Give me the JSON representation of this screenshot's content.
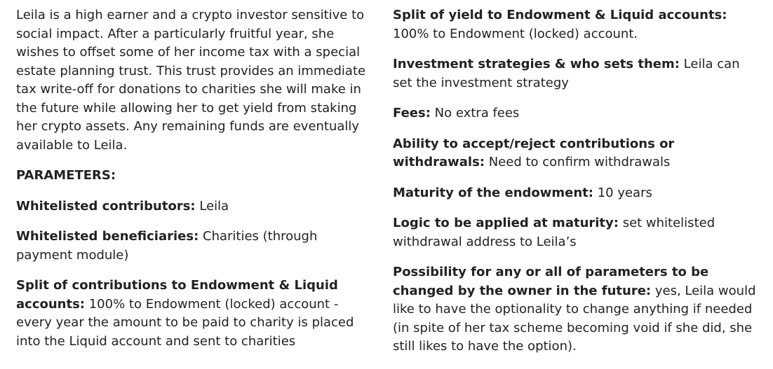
{
  "left": {
    "intro": "Leila is a high earner and a crypto investor sensitive to social impact. After a particularly fruitful year, she wishes to offset some of her income tax with a special estate planning trust. This trust provides an immediate tax write-off for donations to charities she will make in the future while allowing her to get yield from staking her crypto assets. Any remaining funds are eventually available to Leila.",
    "heading": "PARAMETERS:",
    "params": [
      {
        "label": "Whitelisted contributors:",
        "value": " Leila"
      },
      {
        "label": "Whitelisted beneficiaries:",
        "value": " Charities (through payment module)"
      },
      {
        "label": "Split of contributions to Endowment & Liquid accounts:",
        "value": " 100% to Endowment (locked) account - every year the amount to be paid to charity is placed into the Liquid account and sent to charities"
      }
    ]
  },
  "right": {
    "params": [
      {
        "label": "Split of yield to Endowment & Liquid accounts:",
        "value": " 100% to Endowment (locked) account."
      },
      {
        "label": "Investment strategies & who sets them:",
        "value": " Leila can set the investment strategy"
      },
      {
        "label": "Fees:",
        "value": " No extra fees"
      },
      {
        "label": "Ability to accept/reject contributions or withdrawals:",
        "value": " Need to confirm withdrawals"
      },
      {
        "label": "Maturity of the endowment:",
        "value": " 10 years"
      },
      {
        "label": "Logic to be applied at maturity:",
        "value": " set whitelisted withdrawal address to Leila’s"
      },
      {
        "label": "Possibility for any or all of parameters to be changed by the owner in the future:",
        "value": " yes, Leila would like to have the optionality to change anything if needed (in spite of her tax scheme becoming void if she did, she still likes to have the option)."
      }
    ]
  }
}
